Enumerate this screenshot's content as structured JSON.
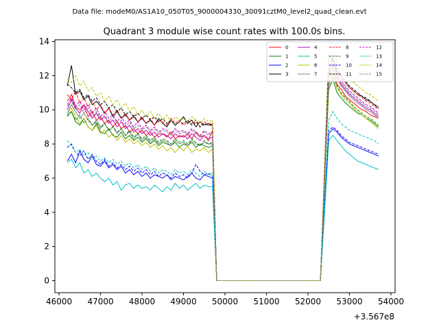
{
  "header": {
    "file_label": "Data file: modeM0/AS1A10_050T05_9000004330_30091cztM0_level2_quad_clean.evt"
  },
  "chart_data": {
    "type": "line",
    "title": "Quadrant 3 module wise count rates with 100.0s bins.",
    "xlabel": "",
    "ylabel": "",
    "x_offset_label": "+3.567e8",
    "xlim": [
      45900,
      54100
    ],
    "ylim": [
      -0.7,
      14.1
    ],
    "xticks": [
      46000,
      47000,
      48000,
      49000,
      50000,
      51000,
      52000,
      53000,
      54000
    ],
    "xtick_labels": [
      "46000",
      "47000",
      "48000",
      "49000",
      "50000",
      "51000",
      "52000",
      "53000",
      "54000"
    ],
    "yticks": [
      0,
      2,
      4,
      6,
      8,
      10,
      12,
      14
    ],
    "ytick_labels": [
      "0",
      "2",
      "4",
      "6",
      "8",
      "10",
      "12",
      "14"
    ],
    "grid": false,
    "legend_position": "top-right",
    "segment_1": {
      "x_start": 46200,
      "x_end": 49700,
      "step": 100
    },
    "gap": {
      "x_start": 49800,
      "x_end": 52300,
      "value": 0
    },
    "segment_2": {
      "x_start": 52400,
      "x_end": 53700,
      "step": 100
    },
    "series": [
      {
        "name": "0",
        "color": "#ff0000",
        "dash": "solid",
        "seg1": [
          10.5,
          10.9,
          10.2,
          10.0,
          10.3,
          9.6,
          9.9,
          9.4,
          9.6,
          9.2,
          9.4,
          9.0,
          9.3,
          8.9,
          9.1,
          8.7,
          8.9,
          8.6,
          8.8,
          8.5,
          8.7,
          8.4,
          8.6,
          8.6,
          8.4,
          8.7,
          8.3,
          8.5,
          8.4,
          8.6,
          8.3,
          8.7,
          8.4,
          8.5,
          8.2,
          8.8
        ],
        "seg2": [
          6.0,
          11.8,
          12.4,
          11.5,
          11.2,
          10.8,
          10.6,
          10.4,
          10.2,
          10.0,
          9.9,
          9.7,
          9.6,
          9.5
        ]
      },
      {
        "name": "1",
        "color": "#008000",
        "dash": "solid",
        "seg1": [
          9.7,
          9.9,
          9.3,
          9.1,
          9.5,
          9.0,
          8.8,
          9.2,
          8.7,
          8.6,
          8.9,
          8.5,
          8.4,
          8.7,
          8.3,
          8.5,
          8.2,
          8.4,
          8.1,
          8.3,
          8.0,
          8.2,
          7.9,
          8.1,
          8.0,
          7.9,
          8.1,
          7.8,
          8.0,
          7.9,
          8.1,
          7.8,
          8.0,
          7.9,
          7.8,
          7.9
        ],
        "seg2": [
          5.8,
          11.2,
          11.8,
          11.0,
          10.7,
          10.4,
          10.2,
          10.0,
          9.8,
          9.7,
          9.5,
          9.4,
          9.2,
          9.0
        ]
      },
      {
        "name": "2",
        "color": "#0000ff",
        "dash": "solid",
        "seg1": [
          7.0,
          7.4,
          6.9,
          7.6,
          7.1,
          6.9,
          7.3,
          6.8,
          6.7,
          7.0,
          6.6,
          6.8,
          6.5,
          6.7,
          6.3,
          6.5,
          6.2,
          6.4,
          6.1,
          6.3,
          6.0,
          6.2,
          6.1,
          6.0,
          6.2,
          5.9,
          6.1,
          6.0,
          5.9,
          6.1,
          6.3,
          6.0,
          5.9,
          6.2,
          6.1,
          6.0
        ],
        "seg2": [
          4.5,
          8.6,
          8.9,
          8.7,
          8.4,
          8.2,
          8.0,
          7.9,
          7.8,
          7.7,
          7.6,
          7.5,
          7.4,
          7.3
        ]
      },
      {
        "name": "3",
        "color": "#000000",
        "dash": "solid",
        "seg1": [
          11.4,
          12.6,
          10.9,
          11.1,
          10.6,
          10.8,
          10.3,
          10.5,
          10.2,
          9.8,
          10.1,
          9.6,
          9.9,
          9.5,
          9.7,
          9.4,
          9.6,
          9.3,
          9.5,
          9.2,
          9.4,
          9.1,
          9.5,
          9.2,
          9.0,
          9.4,
          9.1,
          9.3,
          9.6,
          9.2,
          9.4,
          9.0,
          9.3,
          9.1,
          9.2,
          9.1
        ],
        "seg2": [
          6.5,
          13.2,
          12.8,
          12.2,
          11.9,
          11.6,
          11.3,
          11.1,
          10.9,
          10.8,
          10.6,
          10.5,
          10.3,
          10.1
        ]
      },
      {
        "name": "4",
        "color": "#bf00bf",
        "dash": "solid",
        "seg1": [
          10.0,
          10.6,
          10.1,
          9.8,
          10.3,
          9.9,
          9.5,
          9.8,
          9.4,
          9.6,
          9.2,
          9.4,
          9.0,
          9.3,
          8.9,
          9.1,
          8.7,
          8.9,
          8.6,
          8.8,
          8.5,
          8.7,
          8.4,
          8.6,
          8.5,
          8.3,
          8.6,
          8.4,
          8.5,
          8.3,
          8.6,
          8.4,
          8.2,
          8.5,
          8.3,
          8.4
        ],
        "seg2": [
          6.2,
          12.2,
          12.6,
          11.9,
          11.5,
          11.2,
          10.9,
          10.7,
          10.5,
          10.3,
          10.1,
          10.0,
          9.8,
          9.6
        ]
      },
      {
        "name": "5",
        "color": "#00bfbf",
        "dash": "solid",
        "seg1": [
          6.9,
          7.1,
          6.6,
          6.9,
          6.3,
          6.5,
          6.1,
          6.3,
          6.0,
          5.8,
          6.0,
          5.6,
          5.8,
          5.3,
          5.6,
          5.7,
          5.4,
          5.6,
          5.4,
          5.5,
          5.3,
          5.6,
          5.4,
          5.2,
          5.5,
          5.3,
          5.7,
          5.4,
          5.6,
          5.3,
          5.5,
          5.7,
          5.4,
          5.6,
          5.5,
          5.5
        ],
        "seg2": [
          4.0,
          8.2,
          8.5,
          8.2,
          7.9,
          7.6,
          7.4,
          7.2,
          7.0,
          6.9,
          6.8,
          6.7,
          6.6,
          6.5
        ]
      },
      {
        "name": "6",
        "color": "#bfbf00",
        "dash": "solid",
        "seg1": [
          9.8,
          10.1,
          9.6,
          9.2,
          9.5,
          9.0,
          8.8,
          9.1,
          8.6,
          8.8,
          8.4,
          8.6,
          8.2,
          8.5,
          8.1,
          8.3,
          8.0,
          8.2,
          7.9,
          8.1,
          7.8,
          8.0,
          7.7,
          7.9,
          7.6,
          7.8,
          7.5,
          7.8,
          7.6,
          7.9,
          7.5,
          7.7,
          7.6,
          7.8,
          7.5,
          7.7
        ],
        "seg2": [
          5.8,
          11.4,
          12.0,
          11.3,
          10.9,
          10.6,
          10.4,
          10.1,
          9.9,
          9.7,
          9.5,
          9.3,
          9.1,
          8.9
        ]
      },
      {
        "name": "7",
        "color": "#808080",
        "dash": "solid",
        "seg1": [
          9.8,
          10.3,
          9.9,
          9.5,
          9.8,
          9.4,
          9.1,
          9.4,
          9.0,
          9.2,
          8.8,
          9.0,
          8.6,
          8.9,
          8.5,
          8.7,
          8.3,
          8.6,
          8.2,
          8.4,
          8.1,
          8.3,
          8.0,
          8.2,
          8.1,
          7.9,
          8.2,
          8.0,
          8.1,
          7.9,
          8.2,
          8.0,
          7.9,
          8.1,
          8.0,
          8.0
        ],
        "seg2": [
          6.0,
          11.9,
          12.7,
          11.8,
          11.4,
          11.1,
          10.8,
          10.6,
          10.4,
          10.2,
          10.0,
          9.9,
          9.7,
          9.5
        ]
      },
      {
        "name": "8",
        "color": "#ff0000",
        "dash": "dashed",
        "seg1": [
          10.9,
          10.6,
          11.1,
          10.4,
          10.7,
          10.2,
          10.5,
          10.0,
          10.3,
          9.8,
          10.1,
          9.7,
          10.0,
          9.5,
          9.8,
          9.4,
          9.7,
          9.3,
          9.6,
          9.2,
          9.5,
          9.1,
          9.4,
          9.3,
          9.1,
          9.5,
          9.2,
          9.4,
          9.1,
          9.3,
          9.2,
          9.4,
          9.0,
          9.3,
          9.1,
          9.2
        ],
        "seg2": [
          6.3,
          12.4,
          13.1,
          12.3,
          11.9,
          11.6,
          11.3,
          11.1,
          10.9,
          10.7,
          10.5,
          10.4,
          10.2,
          10.0
        ]
      },
      {
        "name": "9",
        "color": "#008000",
        "dash": "dashed",
        "seg1": [
          9.6,
          9.9,
          9.4,
          9.7,
          9.2,
          9.5,
          9.1,
          9.3,
          8.9,
          9.2,
          8.8,
          9.0,
          8.7,
          8.9,
          8.5,
          8.8,
          8.4,
          8.6,
          8.3,
          8.5,
          8.2,
          8.4,
          8.1,
          8.3,
          8.2,
          8.0,
          8.3,
          8.1,
          8.2,
          8.0,
          8.3,
          8.1,
          7.9,
          8.2,
          8.0,
          8.1
        ],
        "seg2": [
          5.9,
          11.5,
          12.1,
          11.4,
          11.0,
          10.7,
          10.5,
          10.2,
          10.0,
          9.8,
          9.6,
          9.5,
          9.3,
          9.1
        ]
      },
      {
        "name": "10",
        "color": "#0000ff",
        "dash": "dashed",
        "seg1": [
          7.8,
          8.0,
          7.5,
          7.3,
          7.6,
          7.1,
          7.4,
          7.0,
          6.8,
          7.1,
          6.7,
          6.9,
          6.6,
          6.8,
          6.5,
          6.7,
          6.4,
          6.6,
          6.3,
          6.5,
          6.2,
          6.4,
          6.1,
          6.3,
          6.2,
          6.0,
          6.3,
          6.1,
          6.2,
          6.0,
          6.3,
          6.8,
          6.4,
          6.2,
          6.3,
          6.1
        ],
        "seg2": [
          4.6,
          8.8,
          9.0,
          8.8,
          8.5,
          8.3,
          8.1,
          8.0,
          7.9,
          7.8,
          7.7,
          7.6,
          7.5,
          7.4
        ]
      },
      {
        "name": "11",
        "color": "#000000",
        "dash": "dashed",
        "seg1": [
          11.5,
          11.3,
          11.0,
          11.2,
          10.7,
          10.9,
          10.5,
          10.7,
          10.3,
          10.5,
          10.1,
          10.3,
          9.9,
          10.1,
          9.7,
          9.9,
          9.6,
          9.8,
          9.5,
          9.7,
          9.4,
          9.6,
          9.3,
          9.5,
          9.2,
          9.4,
          9.1,
          9.3,
          9.2,
          9.4,
          9.1,
          9.3,
          9.0,
          9.2,
          9.1,
          9.1
        ],
        "seg2": [
          6.6,
          12.9,
          13.0,
          12.4,
          12.0,
          11.7,
          11.4,
          11.2,
          11.0,
          10.8,
          10.7,
          10.5,
          10.3,
          10.2
        ]
      },
      {
        "name": "12",
        "color": "#bf00bf",
        "dash": "dashed",
        "seg1": [
          10.3,
          10.7,
          10.2,
          10.5,
          10.0,
          10.3,
          9.8,
          10.1,
          9.6,
          9.9,
          9.5,
          9.7,
          9.3,
          9.6,
          9.2,
          9.4,
          9.0,
          9.3,
          8.9,
          9.1,
          8.8,
          9.0,
          8.7,
          8.9,
          8.8,
          8.6,
          8.9,
          8.7,
          8.8,
          8.6,
          8.9,
          8.7,
          8.5,
          8.8,
          8.6,
          8.7
        ],
        "seg2": [
          6.2,
          12.1,
          12.9,
          12.1,
          11.7,
          11.4,
          11.1,
          10.9,
          10.7,
          10.5,
          10.3,
          10.2,
          10.0,
          9.8
        ]
      },
      {
        "name": "13",
        "color": "#00bfbf",
        "dash": "dashed",
        "seg1": [
          8.2,
          7.9,
          7.5,
          7.7,
          7.3,
          7.5,
          7.1,
          7.3,
          7.0,
          7.2,
          6.9,
          7.1,
          6.8,
          7.0,
          6.7,
          6.9,
          6.6,
          6.8,
          6.5,
          6.7,
          6.4,
          6.6,
          6.3,
          6.5,
          6.4,
          6.2,
          6.5,
          6.3,
          6.4,
          6.2,
          6.5,
          6.3,
          6.1,
          6.4,
          6.2,
          6.3
        ],
        "seg2": [
          4.8,
          9.4,
          9.9,
          9.5,
          9.2,
          9.0,
          8.8,
          8.7,
          8.6,
          8.5,
          8.4,
          8.3,
          8.2,
          8.0
        ]
      },
      {
        "name": "14",
        "color": "#bfbf00",
        "dash": "dashed",
        "seg1": [
          11.8,
          11.6,
          12.0,
          11.4,
          11.7,
          11.1,
          11.3,
          10.8,
          11.0,
          10.5,
          10.8,
          10.3,
          10.6,
          10.1,
          10.4,
          9.9,
          10.2,
          9.7,
          10.0,
          9.6,
          9.9,
          9.5,
          9.8,
          9.4,
          9.7,
          9.3,
          9.6,
          9.4,
          9.5,
          9.3,
          9.6,
          9.4,
          9.2,
          9.5,
          9.3,
          9.4
        ],
        "seg2": [
          6.8,
          13.1,
          13.4,
          12.8,
          12.4,
          12.1,
          11.8,
          11.6,
          11.4,
          11.2,
          11.0,
          10.9,
          10.7,
          10.5
        ]
      },
      {
        "name": "15",
        "color": "#808080",
        "dash": "dashed",
        "seg1": [
          10.2,
          10.5,
          10.0,
          10.3,
          9.8,
          10.1,
          9.6,
          9.9,
          9.5,
          9.7,
          9.3,
          9.6,
          9.2,
          9.4,
          9.0,
          9.3,
          8.9,
          9.1,
          8.8,
          9.0,
          8.7,
          8.9,
          8.6,
          8.8,
          8.7,
          8.5,
          8.8,
          8.6,
          8.7,
          8.5,
          8.8,
          8.6,
          8.4,
          8.7,
          8.5,
          8.6
        ],
        "seg2": [
          6.1,
          12.0,
          12.8,
          12.0,
          11.6,
          11.3,
          11.0,
          10.8,
          10.6,
          10.4,
          10.2,
          10.1,
          9.9,
          9.7
        ]
      }
    ]
  }
}
